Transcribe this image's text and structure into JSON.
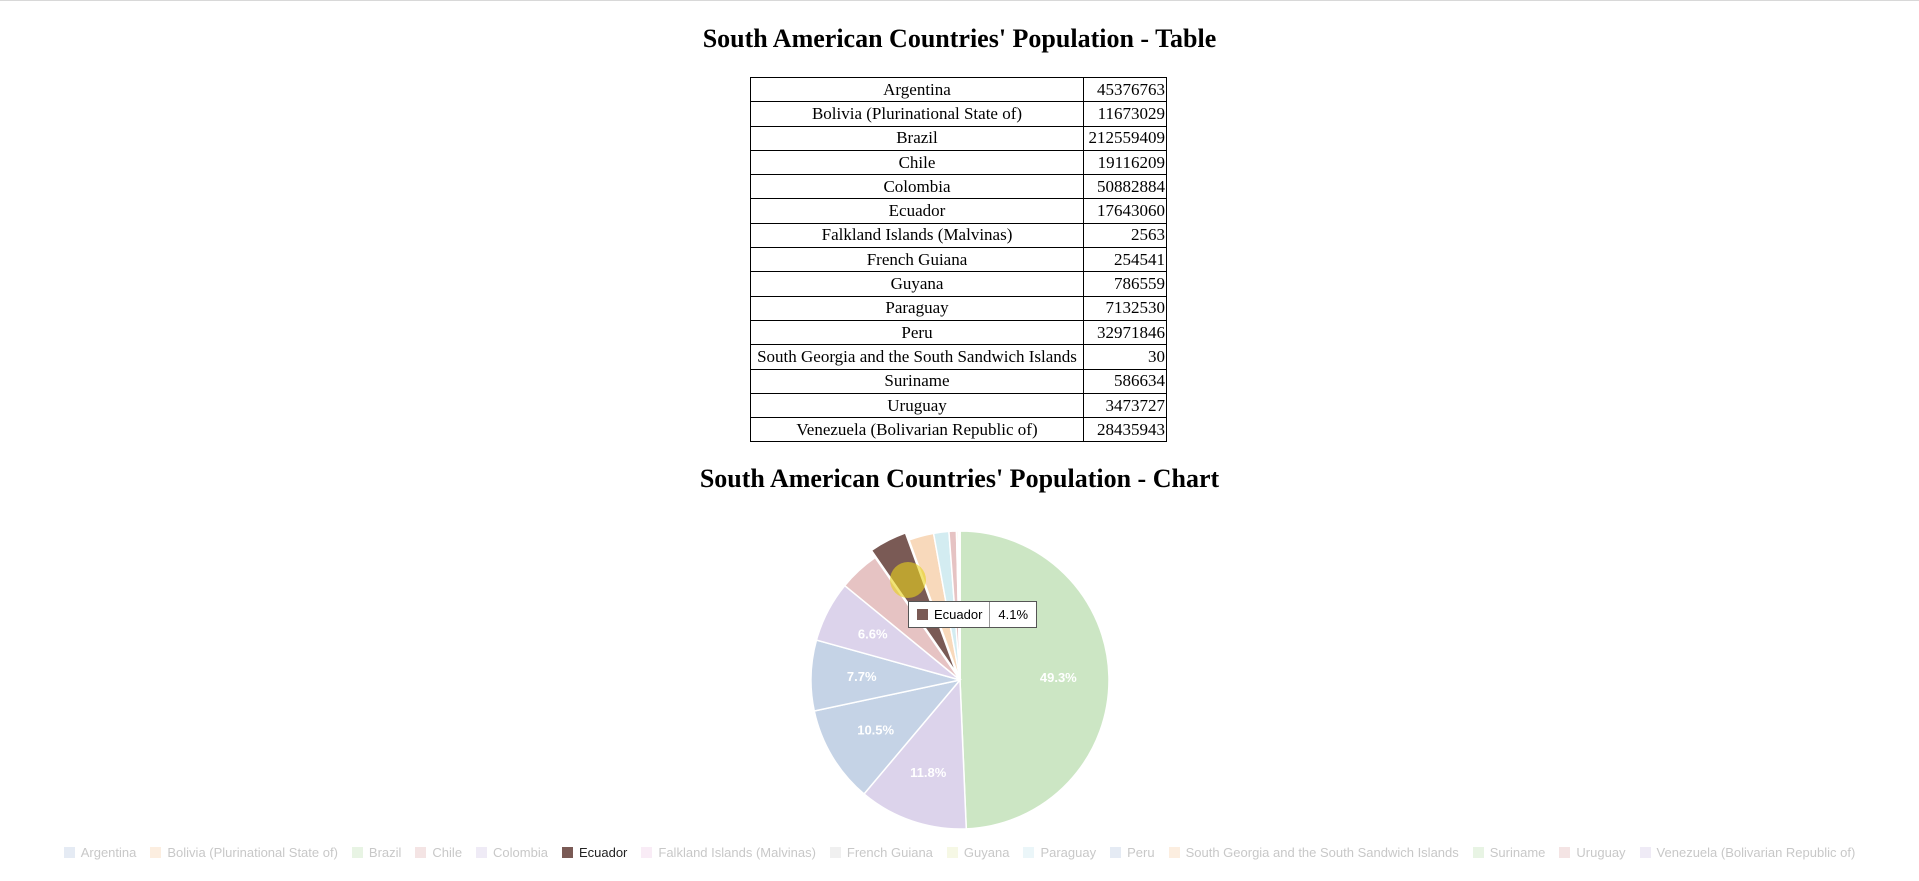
{
  "table_title": "South American Countries' Population - Table",
  "chart_title": "South American Countries' Population - Chart",
  "table_rows": [
    {
      "country": "Argentina",
      "population": "45376763"
    },
    {
      "country": "Bolivia (Plurinational State of)",
      "population": "11673029"
    },
    {
      "country": "Brazil",
      "population": "212559409"
    },
    {
      "country": "Chile",
      "population": "19116209"
    },
    {
      "country": "Colombia",
      "population": "50882884"
    },
    {
      "country": "Ecuador",
      "population": "17643060"
    },
    {
      "country": "Falkland Islands (Malvinas)",
      "population": "2563"
    },
    {
      "country": "French Guiana",
      "population": "254541"
    },
    {
      "country": "Guyana",
      "population": "786559"
    },
    {
      "country": "Paraguay",
      "population": "7132530"
    },
    {
      "country": "Peru",
      "population": "32971846"
    },
    {
      "country": "South Georgia and the South Sandwich Islands",
      "population": "30"
    },
    {
      "country": "Suriname",
      "population": "586634"
    },
    {
      "country": "Uruguay",
      "population": "3473727"
    },
    {
      "country": "Venezuela (Bolivarian Republic of)",
      "population": "28435943"
    }
  ],
  "chart_data": {
    "type": "pie",
    "categories": [
      "Argentina",
      "Bolivia (Plurinational State of)",
      "Brazil",
      "Chile",
      "Colombia",
      "Ecuador",
      "Falkland Islands (Malvinas)",
      "French Guiana",
      "Guyana",
      "Paraguay",
      "Peru",
      "South Georgia and the South Sandwich Islands",
      "Suriname",
      "Uruguay",
      "Venezuela (Bolivarian Republic of)"
    ],
    "values": [
      45376763,
      11673029,
      212559409,
      19116209,
      50882884,
      17643060,
      2563,
      254541,
      786559,
      7132530,
      32971846,
      30,
      586634,
      3473727,
      28435943
    ],
    "sorted_order": [
      "Brazil",
      "Colombia",
      "Argentina",
      "Peru",
      "Venezuela (Bolivarian Republic of)",
      "Chile",
      "Ecuador",
      "Bolivia (Plurinational State of)",
      "Paraguay",
      "Uruguay",
      "Guyana",
      "Suriname",
      "French Guiana",
      "Falkland Islands (Malvinas)",
      "South Georgia and the South Sandwich Islands"
    ],
    "slice_labels": {
      "Brazil": "49.3%",
      "Colombia": "11.8%",
      "Argentina": "10.5%",
      "Peru": "7.7%",
      "Venezuela (Bolivarian Republic of)": "6.6%"
    },
    "colors": {
      "Argentina": "#c5d3e6",
      "Bolivia (Plurinational State of)": "#f8d9bb",
      "Brazil": "#cce6c4",
      "Chile": "#e6c3c3",
      "Colombia": "#dcd3eb",
      "Ecuador": "#7a5a55",
      "Falkland Islands (Malvinas)": "#f1d5ec",
      "French Guiana": "#dddddd",
      "Guyana": "#ecf0c5",
      "Paraguay": "#d3ecf1",
      "Peru": "#c5d3e6",
      "South Georgia and the South Sandwich Islands": "#f8d9bb",
      "Suriname": "#cce6c4",
      "Uruguay": "#e6c3c3",
      "Venezuela (Bolivarian Republic of)": "#dcd3eb"
    },
    "highlighted": "Ecuador",
    "legend_position": "bottom",
    "tooltip": {
      "label": "Ecuador",
      "value": "4.1%"
    }
  }
}
